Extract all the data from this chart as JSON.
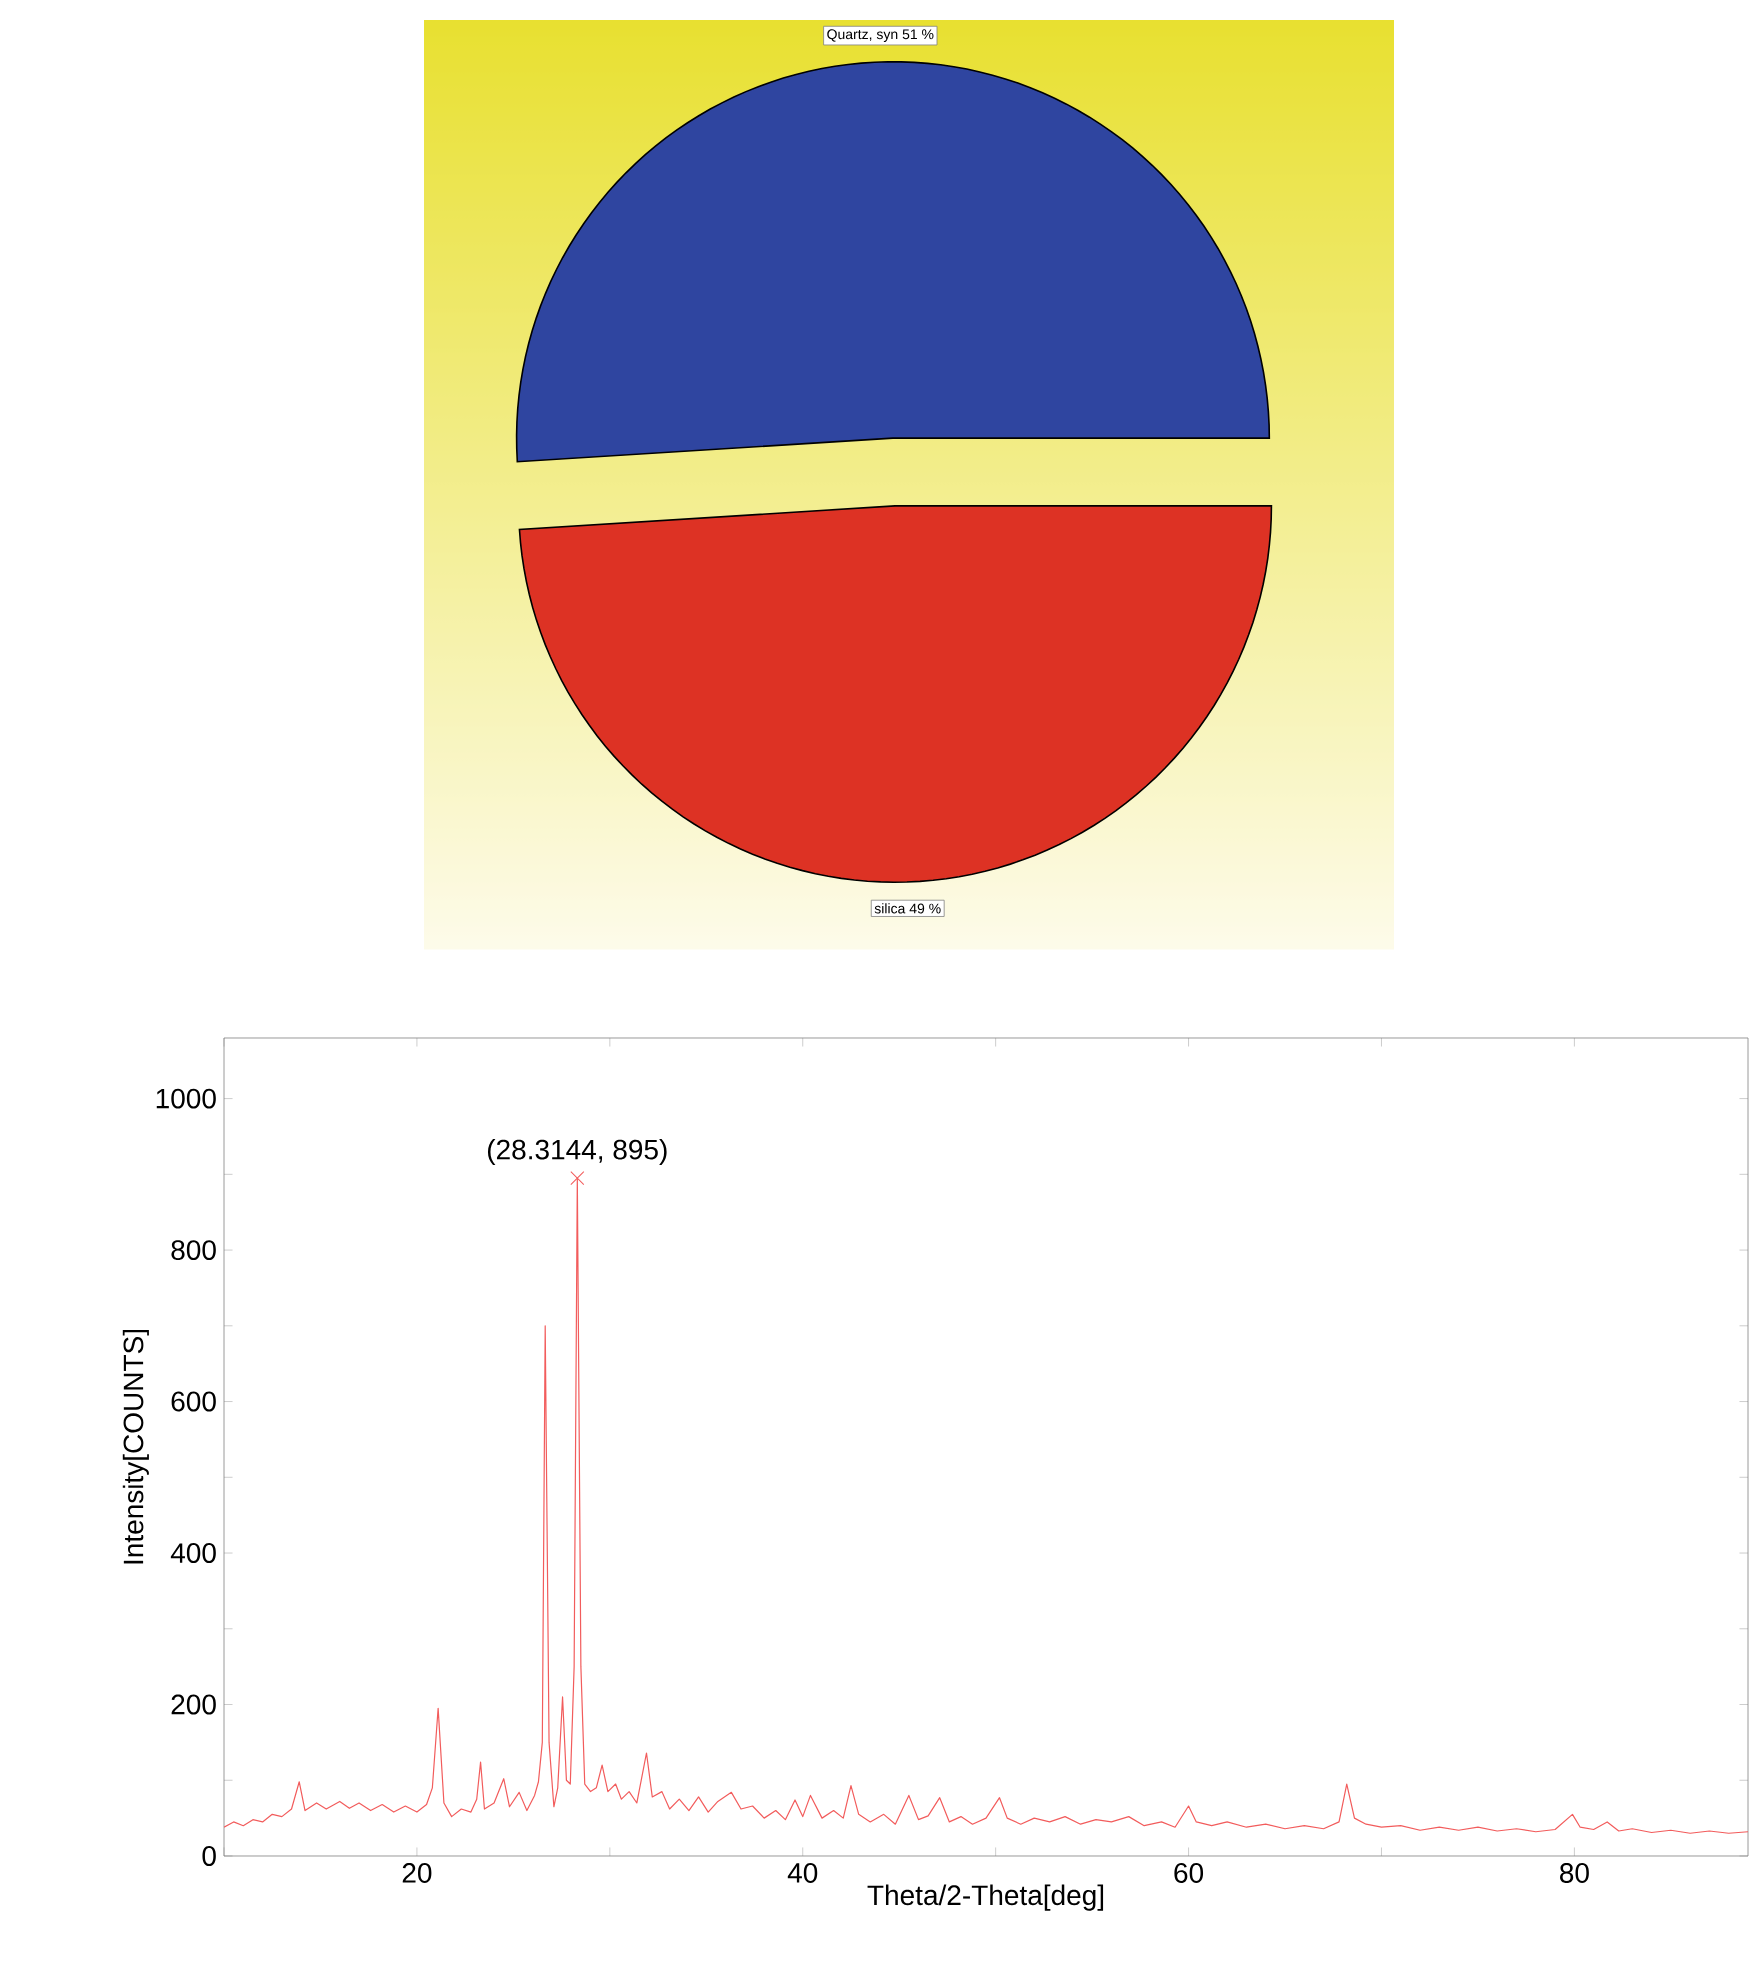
{
  "chart_data": [
    {
      "type": "pie",
      "categories": [
        "Quartz, syn",
        "silica"
      ],
      "values": [
        51,
        49
      ],
      "value_labels": [
        "51 %",
        "49 %"
      ],
      "colors": [
        "#2f45a0",
        "#dd3224"
      ]
    },
    {
      "type": "line",
      "xlabel": "Theta/2-Theta[deg]",
      "ylabel": "Intensity[COUNTS]",
      "xlim": [
        10,
        89
      ],
      "ylim": [
        0,
        1080
      ],
      "xticks": [
        {
          "value": 10,
          "label": null
        },
        20,
        {
          "value": 30,
          "label": null
        },
        40,
        {
          "value": 50,
          "label": null
        },
        60,
        {
          "value": 70,
          "label": null
        },
        80
      ],
      "yticks": [
        0,
        {
          "value": 100,
          "label": null
        },
        200,
        {
          "value": 300,
          "label": null
        },
        400,
        {
          "value": 500,
          "label": null
        },
        600,
        {
          "value": 700,
          "label": null
        },
        800,
        {
          "value": 900,
          "label": null
        },
        1000
      ],
      "annotations": [
        {
          "text": "(28.3144, 895)",
          "x": 28.3144,
          "y": 895
        }
      ],
      "series": [
        {
          "color": "#f25c5c",
          "x": [
            10,
            10.5,
            11,
            11.5,
            12,
            12.5,
            13,
            13.5,
            13.9,
            14.2,
            14.8,
            15.3,
            16,
            16.5,
            17,
            17.6,
            18.2,
            18.8,
            19.4,
            20,
            20.5,
            20.8,
            21.1,
            21.4,
            21.8,
            22.3,
            22.8,
            23.1,
            23.3,
            23.5,
            24,
            24.5,
            24.8,
            25.3,
            25.7,
            26.1,
            26.3,
            26.5,
            26.65,
            26.85,
            27.1,
            27.3,
            27.55,
            27.75,
            27.95,
            28.15,
            28.3144,
            28.5,
            28.7,
            29,
            29.3,
            29.6,
            29.9,
            30.3,
            30.6,
            31,
            31.4,
            31.9,
            32.2,
            32.7,
            33.1,
            33.6,
            34.1,
            34.6,
            35.1,
            35.6,
            36.3,
            36.8,
            37.4,
            38,
            38.6,
            39.1,
            39.6,
            40,
            40.4,
            41,
            41.6,
            42.1,
            42.5,
            42.9,
            43.5,
            44.2,
            44.8,
            45.5,
            46,
            46.5,
            47.1,
            47.6,
            48.2,
            48.8,
            49.5,
            50.2,
            50.6,
            51.3,
            52,
            52.8,
            53.6,
            54.4,
            55.2,
            56,
            56.9,
            57.7,
            58.6,
            59.3,
            60,
            60.4,
            61.2,
            62,
            63,
            64,
            65,
            66,
            67,
            67.8,
            68.2,
            68.6,
            69.2,
            70,
            71,
            72,
            73,
            74,
            75,
            76,
            77,
            78,
            79,
            79.9,
            80.3,
            81,
            81.7,
            82.3,
            83,
            84,
            85,
            86,
            87,
            88,
            89
          ],
          "values": [
            38,
            45,
            40,
            48,
            45,
            55,
            52,
            62,
            98,
            60,
            70,
            62,
            72,
            63,
            70,
            60,
            68,
            58,
            66,
            58,
            68,
            90,
            195,
            70,
            52,
            62,
            58,
            75,
            124,
            62,
            70,
            102,
            65,
            84,
            60,
            80,
            98,
            150,
            700,
            150,
            65,
            90,
            210,
            100,
            95,
            250,
            895,
            250,
            95,
            85,
            90,
            120,
            85,
            95,
            75,
            85,
            70,
            136,
            78,
            85,
            62,
            75,
            60,
            78,
            58,
            72,
            84,
            62,
            66,
            50,
            60,
            48,
            74,
            52,
            80,
            50,
            60,
            50,
            93,
            55,
            45,
            55,
            42,
            80,
            48,
            53,
            77,
            45,
            52,
            42,
            50,
            77,
            50,
            42,
            50,
            45,
            52,
            42,
            48,
            45,
            52,
            40,
            45,
            38,
            66,
            45,
            40,
            45,
            38,
            42,
            36,
            40,
            36,
            45,
            95,
            50,
            42,
            38,
            40,
            34,
            38,
            34,
            38,
            33,
            36,
            32,
            35,
            55,
            38,
            35,
            45,
            33,
            36,
            31,
            34,
            30,
            33,
            30,
            32
          ]
        }
      ]
    }
  ]
}
